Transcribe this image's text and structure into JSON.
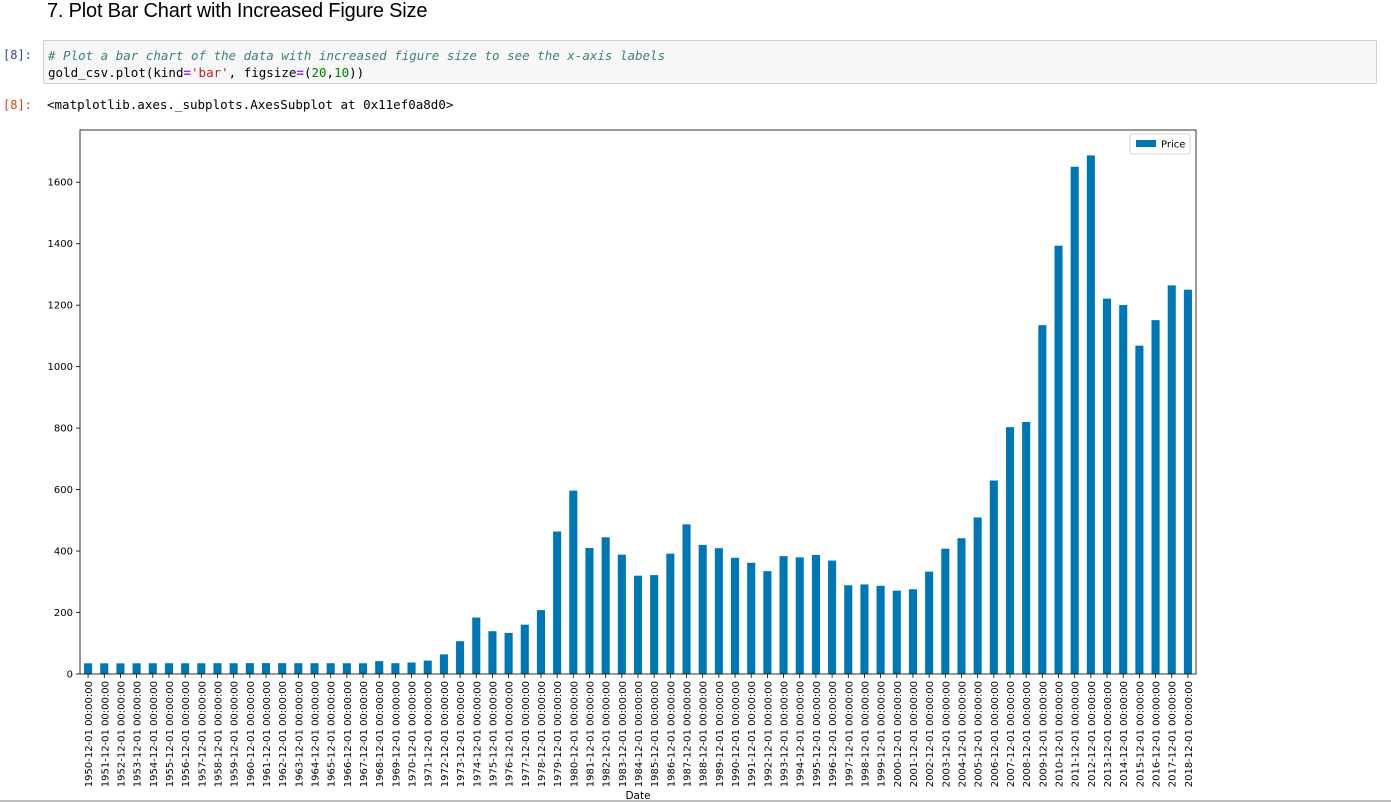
{
  "cell_heading": "7. Plot Bar Chart with Increased Figure Size",
  "input_prompt": "[8]:",
  "output_prompt": "[8]:",
  "code": {
    "comment": "# Plot a bar chart of the data with increased figure size to see the x-axis labels",
    "line2_obj": "gold_csv",
    "line2_dot": ".",
    "line2_method": "plot",
    "line2_open": "(kind",
    "line2_eq1": "=",
    "line2_str": "'bar'",
    "line2_mid": ", figsize",
    "line2_eq2": "=",
    "line2_paren": "(",
    "line2_n1": "20",
    "line2_comma": ",",
    "line2_n2": "10",
    "line2_close": "))"
  },
  "output_repr": "<matplotlib.axes._subplots.AxesSubplot at 0x11ef0a8d0>",
  "colors": {
    "bar": "#0077b3",
    "prompt_in": "#303f9f",
    "prompt_out": "#d84315"
  },
  "chart_data": {
    "type": "bar",
    "xlabel": "Date",
    "ylabel": "",
    "ylim": [
      0,
      1770
    ],
    "yticks": [
      0,
      200,
      400,
      600,
      800,
      1000,
      1200,
      1400,
      1600
    ],
    "legend": "top-right",
    "series": [
      {
        "name": "Price",
        "values": [
          34.72,
          34.72,
          34.6,
          34.88,
          35.04,
          34.97,
          34.9,
          34.95,
          35.21,
          35.05,
          35.27,
          35.5,
          35.35,
          35.21,
          35.1,
          35.12,
          35.14,
          35.04,
          41.9,
          35.2,
          37.44,
          43.63,
          63.91,
          106.72,
          183.77,
          139.29,
          133.77,
          160.45,
          207.8,
          463.66,
          596.71,
          410.09,
          444.84,
          388.2,
          319.95,
          321.72,
          391.62,
          486.89,
          420.08,
          409.36,
          378.08,
          361.73,
          334.65,
          383.64,
          379.48,
          387.44,
          369.14,
          288.83,
          291.38,
          287.05,
          271.2,
          275.81,
          333.17,
          407.63,
          441.76,
          509.42,
          629.51,
          803.2,
          819.94,
          1135.01,
          1393.51,
          1650.44,
          1687.34,
          1221.21,
          1200.44,
          1068.31,
          1151.4,
          1264.45,
          1250.4
        ]
      }
    ],
    "categories": [
      "1950-12-01 00:00:00",
      "1951-12-01 00:00:00",
      "1952-12-01 00:00:00",
      "1953-12-01 00:00:00",
      "1954-12-01 00:00:00",
      "1955-12-01 00:00:00",
      "1956-12-01 00:00:00",
      "1957-12-01 00:00:00",
      "1958-12-01 00:00:00",
      "1959-12-01 00:00:00",
      "1960-12-01 00:00:00",
      "1961-12-01 00:00:00",
      "1962-12-01 00:00:00",
      "1963-12-01 00:00:00",
      "1964-12-01 00:00:00",
      "1965-12-01 00:00:00",
      "1966-12-01 00:00:00",
      "1967-12-01 00:00:00",
      "1968-12-01 00:00:00",
      "1969-12-01 00:00:00",
      "1970-12-01 00:00:00",
      "1971-12-01 00:00:00",
      "1972-12-01 00:00:00",
      "1973-12-01 00:00:00",
      "1974-12-01 00:00:00",
      "1975-12-01 00:00:00",
      "1976-12-01 00:00:00",
      "1977-12-01 00:00:00",
      "1978-12-01 00:00:00",
      "1979-12-01 00:00:00",
      "1980-12-01 00:00:00",
      "1981-12-01 00:00:00",
      "1982-12-01 00:00:00",
      "1983-12-01 00:00:00",
      "1984-12-01 00:00:00",
      "1985-12-01 00:00:00",
      "1986-12-01 00:00:00",
      "1987-12-01 00:00:00",
      "1988-12-01 00:00:00",
      "1989-12-01 00:00:00",
      "1990-12-01 00:00:00",
      "1991-12-01 00:00:00",
      "1992-12-01 00:00:00",
      "1993-12-01 00:00:00",
      "1994-12-01 00:00:00",
      "1995-12-01 00:00:00",
      "1996-12-01 00:00:00",
      "1997-12-01 00:00:00",
      "1998-12-01 00:00:00",
      "1999-12-01 00:00:00",
      "2000-12-01 00:00:00",
      "2001-12-01 00:00:00",
      "2002-12-01 00:00:00",
      "2003-12-01 00:00:00",
      "2004-12-01 00:00:00",
      "2005-12-01 00:00:00",
      "2006-12-01 00:00:00",
      "2007-12-01 00:00:00",
      "2008-12-01 00:00:00",
      "2009-12-01 00:00:00",
      "2010-12-01 00:00:00",
      "2011-12-01 00:00:00",
      "2012-12-01 00:00:00",
      "2013-12-01 00:00:00",
      "2014-12-01 00:00:00",
      "2015-12-01 00:00:00",
      "2016-12-01 00:00:00",
      "2017-12-01 00:00:00",
      "2018-12-01 00:00:00"
    ]
  }
}
